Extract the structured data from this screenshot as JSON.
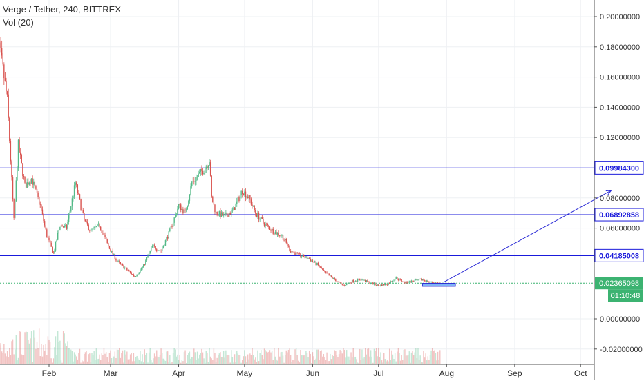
{
  "header": {
    "title": "Verge / Tether, 240, BITTREX",
    "indicator": "Vol (20)"
  },
  "colors": {
    "up": "#53b987",
    "down": "#d9534f",
    "level_line": "#1a1adb",
    "last_price_line": "#3cb371",
    "arrow": "#2b2bd6",
    "grid": "#eef0f3",
    "axis_text": "#333333"
  },
  "chart_data": {
    "type": "candlestick",
    "title": "Verge / Tether, 240, BITTREX",
    "x_ticks": [
      "Feb",
      "Mar",
      "Apr",
      "May",
      "Jun",
      "Jul",
      "Aug",
      "Sep",
      "Oct"
    ],
    "y_ticks": [
      "0.20000000",
      "0.18000000",
      "0.16000000",
      "0.14000000",
      "0.12000000",
      "0.08000000",
      "0.06000000",
      "0.00000000",
      "-0.02000000"
    ],
    "ylim": [
      -0.025,
      0.21
    ],
    "grid": true,
    "price_series": {
      "x": [
        "2018-01-07",
        "2018-01-10",
        "2018-01-13",
        "2018-01-16",
        "2018-01-18",
        "2018-01-21",
        "2018-01-24",
        "2018-01-28",
        "2018-01-31",
        "2018-02-03",
        "2018-02-06",
        "2018-02-09",
        "2018-02-13",
        "2018-02-17",
        "2018-02-20",
        "2018-02-24",
        "2018-02-28",
        "2018-03-04",
        "2018-03-08",
        "2018-03-12",
        "2018-03-16",
        "2018-03-20",
        "2018-03-24",
        "2018-03-28",
        "2018-04-01",
        "2018-04-04",
        "2018-04-07",
        "2018-04-10",
        "2018-04-13",
        "2018-04-15",
        "2018-04-16",
        "2018-04-18",
        "2018-04-22",
        "2018-04-26",
        "2018-04-30",
        "2018-05-03",
        "2018-05-06",
        "2018-05-10",
        "2018-05-14",
        "2018-05-18",
        "2018-05-22",
        "2018-05-26",
        "2018-05-30",
        "2018-06-03",
        "2018-06-07",
        "2018-06-11",
        "2018-06-15",
        "2018-06-19",
        "2018-06-23",
        "2018-06-27",
        "2018-07-01",
        "2018-07-05",
        "2018-07-09",
        "2018-07-13",
        "2018-07-17",
        "2018-07-21",
        "2018-07-24",
        "2018-07-27",
        "2018-07-29"
      ],
      "close": [
        0.195,
        0.175,
        0.145,
        0.065,
        0.115,
        0.088,
        0.093,
        0.075,
        0.055,
        0.043,
        0.062,
        0.06,
        0.09,
        0.065,
        0.058,
        0.062,
        0.048,
        0.038,
        0.033,
        0.028,
        0.035,
        0.048,
        0.045,
        0.058,
        0.075,
        0.07,
        0.09,
        0.095,
        0.1,
        0.105,
        0.08,
        0.07,
        0.068,
        0.072,
        0.085,
        0.08,
        0.07,
        0.063,
        0.058,
        0.055,
        0.045,
        0.042,
        0.04,
        0.036,
        0.03,
        0.026,
        0.022,
        0.025,
        0.026,
        0.024,
        0.022,
        0.023,
        0.027,
        0.024,
        0.025,
        0.026,
        0.0245,
        0.0237,
        0.0236
      ]
    },
    "horizontal_levels": [
      {
        "value": 0.099843,
        "label": "0.09984300"
      },
      {
        "value": 0.06892858,
        "label": "0.06892858"
      },
      {
        "value": 0.04185008,
        "label": "0.04185008"
      }
    ],
    "last_price": {
      "value": 0.02365098,
      "label": "0.02365098",
      "countdown": "01:10:48"
    },
    "projection": {
      "box": {
        "x0": "2018-07-21",
        "x1": "2018-08-05",
        "y0": 0.0215,
        "y1": 0.0235
      },
      "arrow": {
        "from_x": "2018-07-31",
        "from_y": 0.0245,
        "to_x": "2018-10-15",
        "to_y": 0.085
      }
    },
    "volume_series_name": "Vol (20)"
  }
}
